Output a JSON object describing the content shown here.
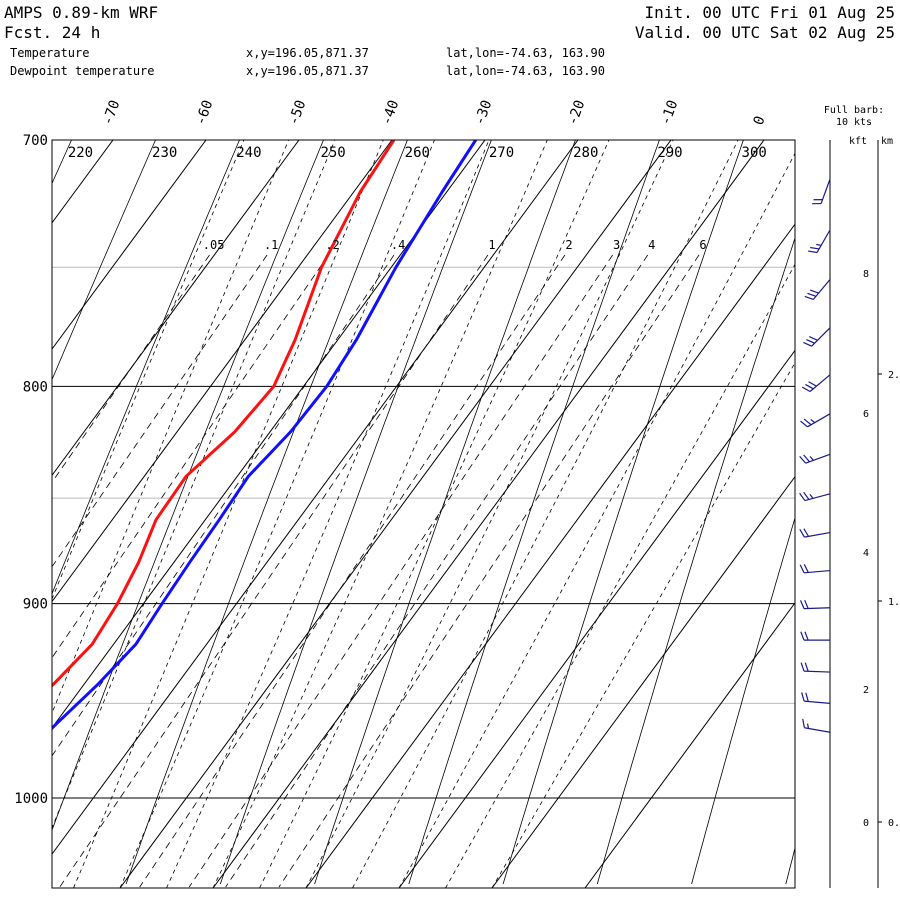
{
  "header": {
    "model": "AMPS 0.89-km WRF",
    "forecast": "Fcst.   24 h",
    "init": "Init. 00 UTC Fri 01 Aug 25",
    "valid": "Valid. 00 UTC Sat 02 Aug 25"
  },
  "legend": [
    {
      "name": "Temperature",
      "location": "x,y=196.05,871.37",
      "latlon": "lat,lon=-74.63, 163.90",
      "color": "#1010ff"
    },
    {
      "name": "Dewpoint temperature",
      "location": "x,y=196.05,871.37",
      "latlon": "lat,lon=-74.63, 163.90",
      "color": "#ff1010"
    }
  ],
  "barb_legend": {
    "line1": "Full barb:",
    "line2": "10 kts"
  },
  "height_axis": {
    "kft_label": "kft",
    "km_label": "km"
  },
  "chart_data": {
    "type": "line",
    "diagram": "skew-T log-p",
    "p_range": [
      700,
      1050
    ],
    "pressure_ticks": [
      700,
      800,
      900,
      1000
    ],
    "temperature_ticks": [
      -70,
      -60,
      -50,
      -40,
      -30,
      -20,
      -10,
      0
    ],
    "theta_labels": [
      220,
      230,
      240,
      250,
      260,
      270,
      280,
      290,
      300
    ],
    "mixing_ratio_labels": [
      ".05",
      ".1",
      ".2",
      ".4",
      "1",
      "2",
      "3",
      "4",
      "6"
    ],
    "series": [
      {
        "name": "Temperature",
        "points": [
          [
            700,
            -31
          ],
          [
            720,
            -30.5
          ],
          [
            750,
            -29.5
          ],
          [
            780,
            -28
          ],
          [
            800,
            -27.5
          ],
          [
            820,
            -27.8
          ],
          [
            840,
            -28.8
          ],
          [
            860,
            -28.5
          ],
          [
            880,
            -28.3
          ],
          [
            900,
            -28
          ],
          [
            920,
            -27.6
          ],
          [
            940,
            -28.5
          ],
          [
            960,
            -29.8
          ],
          [
            970,
            -30.4
          ]
        ]
      },
      {
        "name": "Dewpoint temperature",
        "points": [
          [
            700,
            -39.8
          ],
          [
            720,
            -39.3
          ],
          [
            750,
            -37.5
          ],
          [
            780,
            -34.6
          ],
          [
            800,
            -33.2
          ],
          [
            820,
            -33.8
          ],
          [
            840,
            -35.5
          ],
          [
            860,
            -35.3
          ],
          [
            880,
            -33.8
          ],
          [
            900,
            -32.8
          ],
          [
            920,
            -32.3
          ],
          [
            940,
            -33.3
          ],
          [
            960,
            -34.6
          ],
          [
            970,
            -35.4
          ]
        ]
      }
    ],
    "height_km_ticks": [
      "0.",
      "1.",
      "2."
    ],
    "height_kft_ticks": [
      "0",
      "2",
      "4",
      "6",
      "8"
    ],
    "wind_barbs": [
      {
        "p": 715,
        "speed_kt": 20,
        "dir_deg": 200
      },
      {
        "p": 735,
        "speed_kt": 25,
        "dir_deg": 210
      },
      {
        "p": 755,
        "speed_kt": 30,
        "dir_deg": 220
      },
      {
        "p": 775,
        "speed_kt": 30,
        "dir_deg": 225
      },
      {
        "p": 795,
        "speed_kt": 30,
        "dir_deg": 230
      },
      {
        "p": 812,
        "speed_kt": 25,
        "dir_deg": 240
      },
      {
        "p": 830,
        "speed_kt": 25,
        "dir_deg": 250
      },
      {
        "p": 848,
        "speed_kt": 25,
        "dir_deg": 255
      },
      {
        "p": 866,
        "speed_kt": 20,
        "dir_deg": 260
      },
      {
        "p": 884,
        "speed_kt": 20,
        "dir_deg": 265
      },
      {
        "p": 902,
        "speed_kt": 20,
        "dir_deg": 268
      },
      {
        "p": 918,
        "speed_kt": 20,
        "dir_deg": 270
      },
      {
        "p": 934,
        "speed_kt": 20,
        "dir_deg": 272
      },
      {
        "p": 950,
        "speed_kt": 20,
        "dir_deg": 275
      },
      {
        "p": 965,
        "speed_kt": 15,
        "dir_deg": 280
      }
    ]
  },
  "colors": {
    "temperature": "#1010ff",
    "dewpoint": "#ff1010",
    "barbs": "#1a1a8c",
    "grid": "#000000",
    "isobar_minor": "#bbbbbb"
  }
}
